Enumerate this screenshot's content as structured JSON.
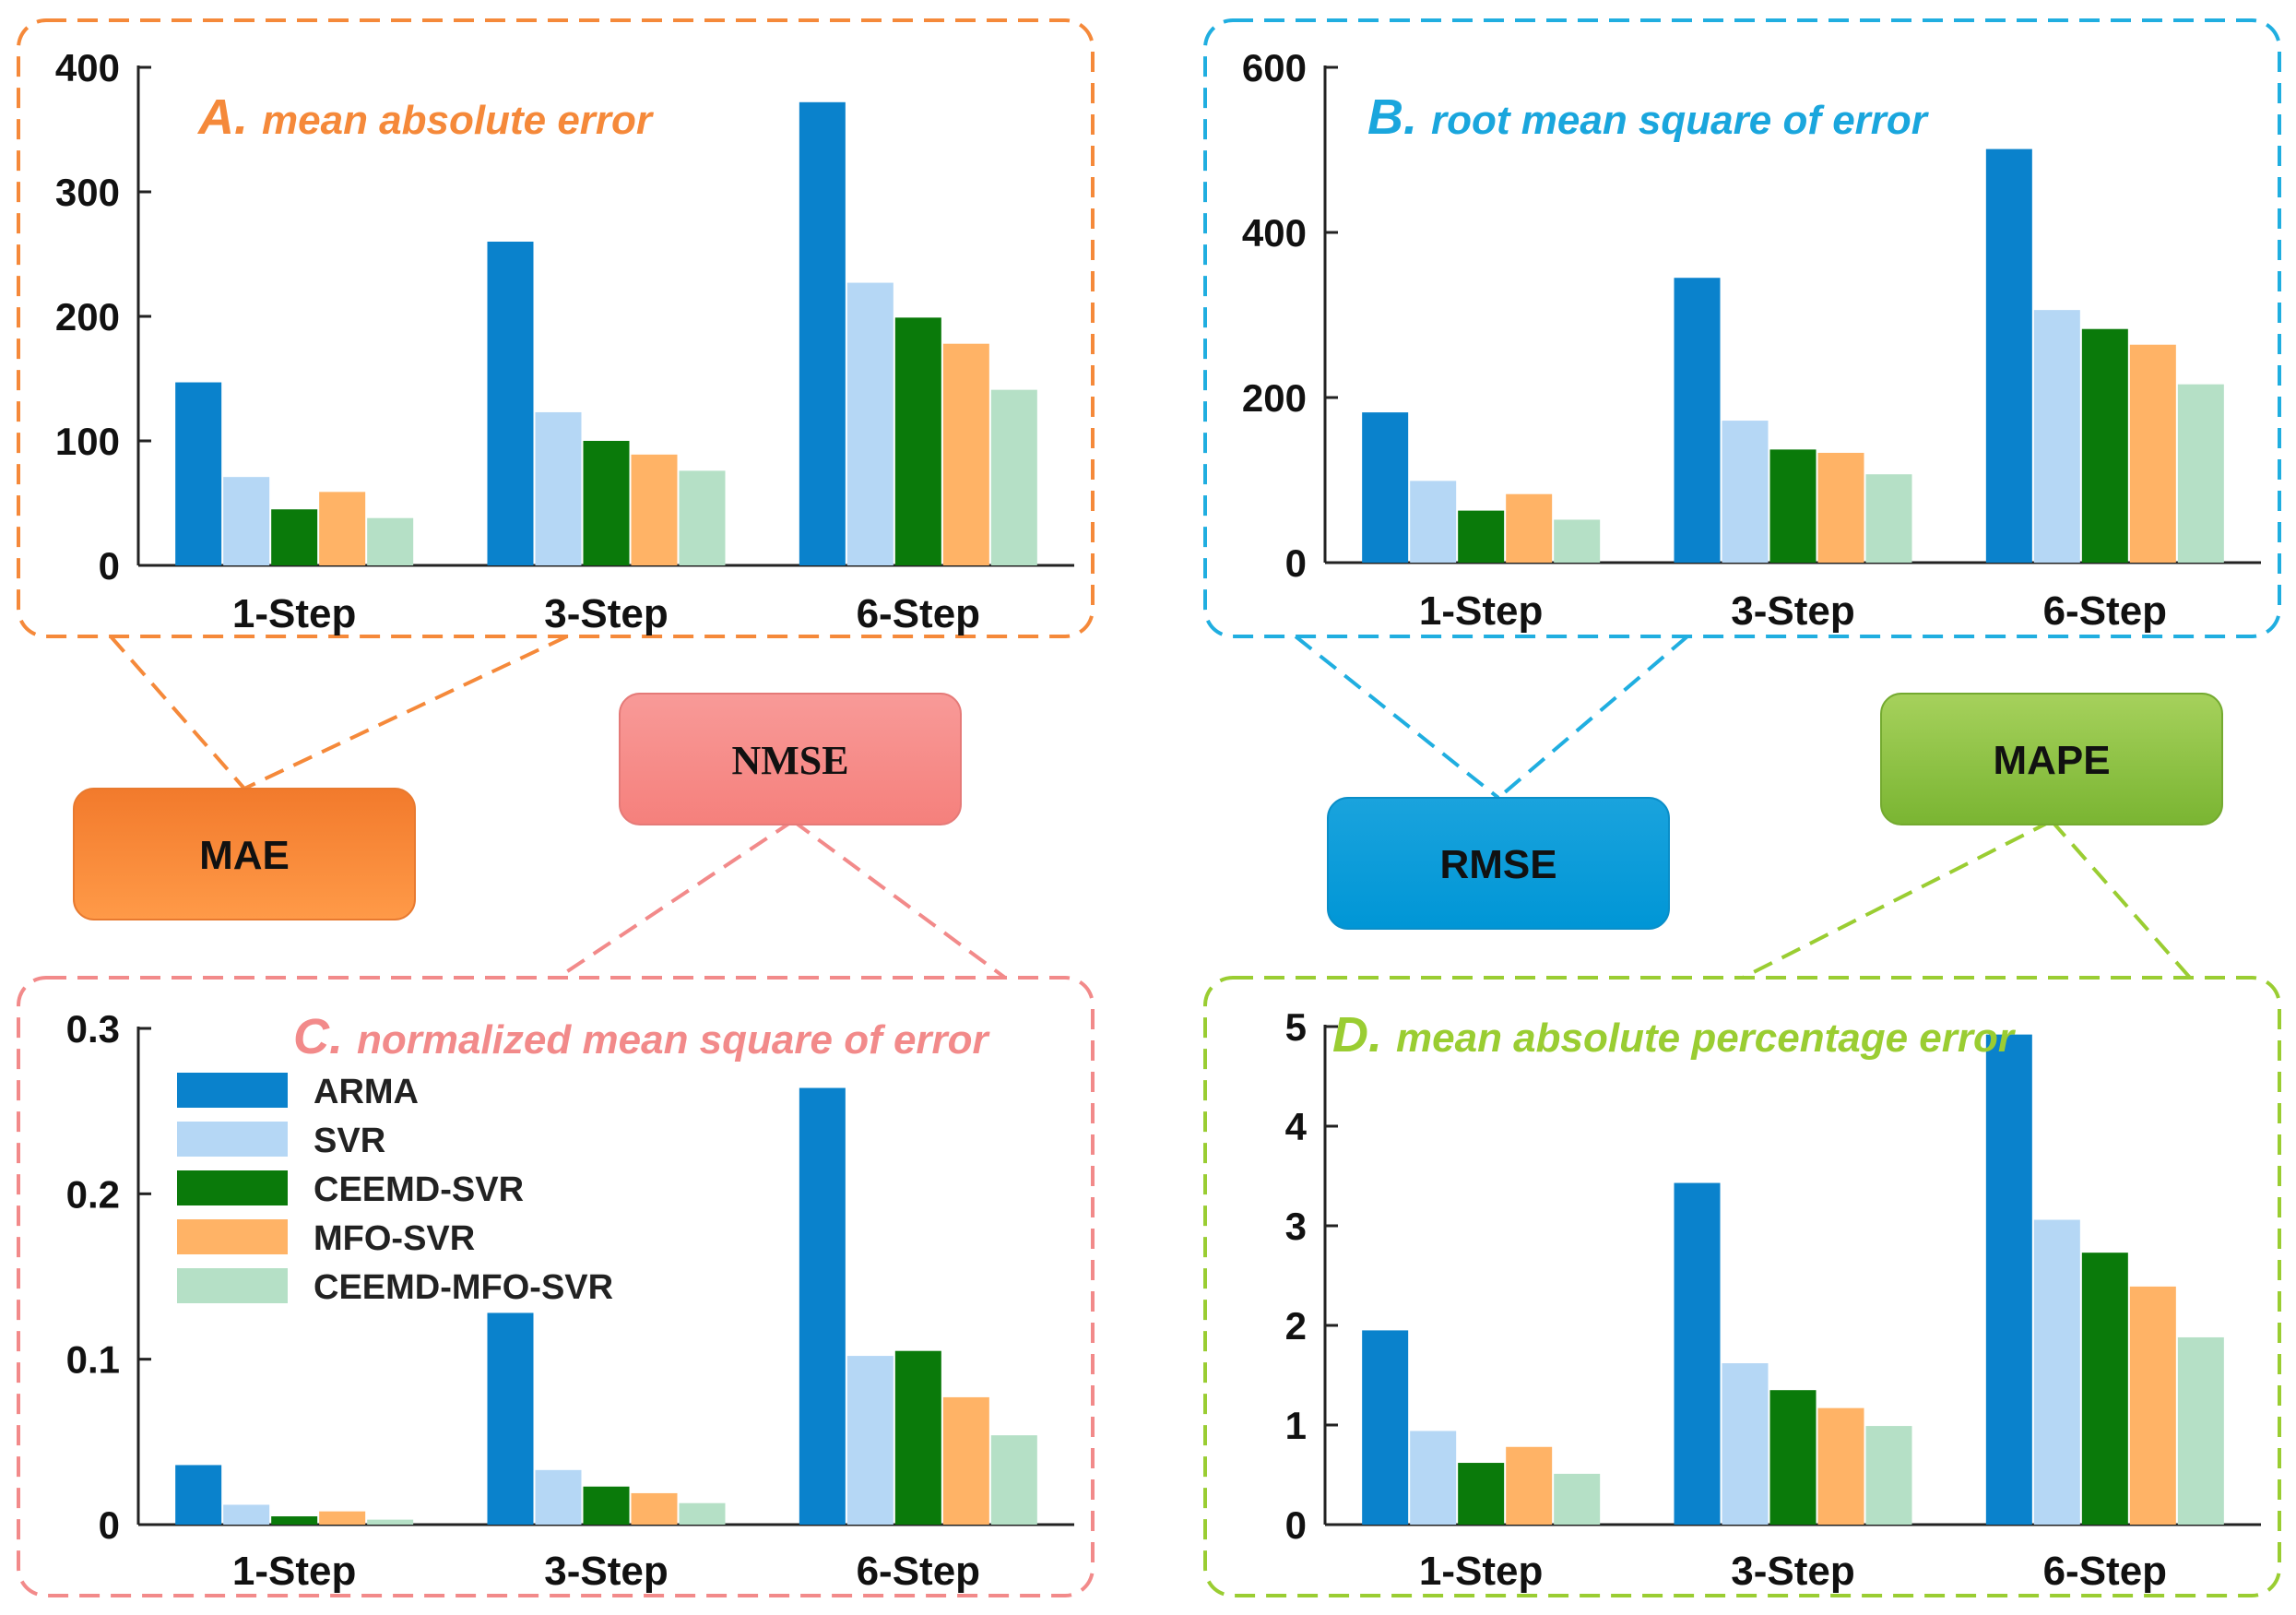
{
  "colors": {
    "series": [
      "#0a82cc",
      "#b5d7f5",
      "#0a7a0a",
      "#ffb366",
      "#b5e0c6"
    ],
    "panel_borders": [
      "#f5893a",
      "#20aee0",
      "#f28a8a",
      "#9acd32"
    ],
    "metric_boxes": [
      "#f5893a",
      "#00a8de",
      "#f58f8f",
      "#8cc43f"
    ]
  },
  "metric_boxes": [
    {
      "label": "MAE"
    },
    {
      "label": "RMSE"
    },
    {
      "label": "NMSE"
    },
    {
      "label": "MAPE"
    }
  ],
  "chart_data": [
    {
      "type": "bar",
      "panel": "A",
      "title_letter": "A.",
      "title": "mean absolute error",
      "categories": [
        "1-Step",
        "3-Step",
        "6-Step"
      ],
      "ylim": [
        0,
        400
      ],
      "yticks": [
        0,
        100,
        200,
        300,
        400
      ],
      "ytick_labels": [
        "0",
        "100",
        "200",
        "300",
        "400"
      ],
      "series": [
        {
          "name": "ARMA",
          "values": [
            147,
            260,
            372
          ]
        },
        {
          "name": "SVR",
          "values": [
            71,
            123,
            227
          ]
        },
        {
          "name": "CEEMD-SVR",
          "values": [
            45,
            100,
            199
          ]
        },
        {
          "name": "MFO-SVR",
          "values": [
            59,
            89,
            178
          ]
        },
        {
          "name": "CEEMD-MFO-SVR",
          "values": [
            38,
            76,
            141
          ]
        }
      ]
    },
    {
      "type": "bar",
      "panel": "B",
      "title_letter": "B.",
      "title": "root mean square of error",
      "categories": [
        "1-Step",
        "3-Step",
        "6-Step"
      ],
      "ylim": [
        0,
        600
      ],
      "yticks": [
        0,
        200,
        400,
        600
      ],
      "ytick_labels": [
        "0",
        "200",
        "400",
        "600"
      ],
      "series": [
        {
          "name": "ARMA",
          "values": [
            182,
            345,
            501
          ]
        },
        {
          "name": "SVR",
          "values": [
            99,
            172,
            306
          ]
        },
        {
          "name": "CEEMD-SVR",
          "values": [
            63,
            137,
            283
          ]
        },
        {
          "name": "MFO-SVR",
          "values": [
            83,
            133,
            264
          ]
        },
        {
          "name": "CEEMD-MFO-SVR",
          "values": [
            52,
            107,
            216
          ]
        }
      ]
    },
    {
      "type": "bar",
      "panel": "C",
      "title_letter": "C.",
      "title": "normalized mean square of error",
      "categories": [
        "1-Step",
        "3-Step",
        "6-Step"
      ],
      "ylim": [
        0,
        0.3
      ],
      "yticks": [
        0,
        0.1,
        0.2,
        0.3
      ],
      "ytick_labels": [
        "0",
        "0.1",
        "0.2",
        "0.3"
      ],
      "legend": [
        "ARMA",
        "SVR",
        "CEEMD-SVR",
        "MFO-SVR",
        "CEEMD-MFO-SVR"
      ],
      "series": [
        {
          "name": "ARMA",
          "values": [
            0.036,
            0.128,
            0.264
          ]
        },
        {
          "name": "SVR",
          "values": [
            0.012,
            0.033,
            0.102
          ]
        },
        {
          "name": "CEEMD-SVR",
          "values": [
            0.005,
            0.023,
            0.105
          ]
        },
        {
          "name": "MFO-SVR",
          "values": [
            0.008,
            0.019,
            0.077
          ]
        },
        {
          "name": "CEEMD-MFO-SVR",
          "values": [
            0.003,
            0.013,
            0.054
          ]
        }
      ]
    },
    {
      "type": "bar",
      "panel": "D",
      "title_letter": "D.",
      "title": "mean absolute percentage error",
      "categories": [
        "1-Step",
        "3-Step",
        "6-Step"
      ],
      "ylim": [
        0,
        5
      ],
      "yticks": [
        0,
        1,
        2,
        3,
        4,
        5
      ],
      "ytick_labels": [
        "0",
        "1",
        "2",
        "3",
        "4",
        "5"
      ],
      "series": [
        {
          "name": "ARMA",
          "values": [
            1.95,
            3.43,
            4.92
          ]
        },
        {
          "name": "SVR",
          "values": [
            0.94,
            1.62,
            3.06
          ]
        },
        {
          "name": "CEEMD-SVR",
          "values": [
            0.62,
            1.35,
            2.73
          ]
        },
        {
          "name": "MFO-SVR",
          "values": [
            0.78,
            1.17,
            2.39
          ]
        },
        {
          "name": "CEEMD-MFO-SVR",
          "values": [
            0.51,
            0.99,
            1.88
          ]
        }
      ]
    }
  ]
}
